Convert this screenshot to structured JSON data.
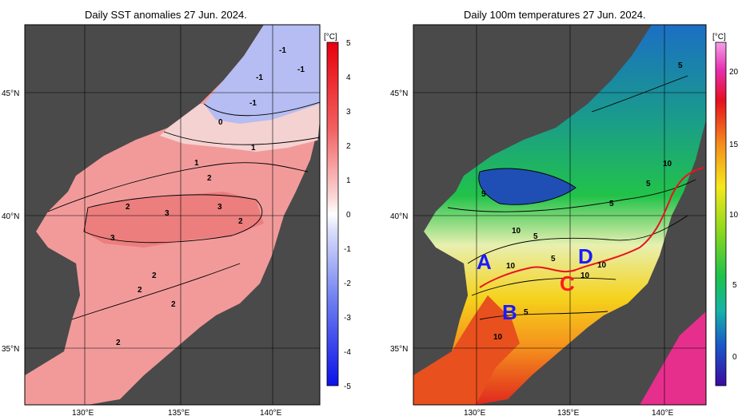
{
  "left_panel": {
    "title": "Daily SST anomalies 27 Jun. 2024.",
    "colorbar_unit": "[°C]",
    "colorbar_ticks": [
      "5",
      "4",
      "3",
      "2",
      "1",
      "0",
      "-1",
      "-2",
      "-3",
      "-4",
      "-5"
    ],
    "contour_labels": [
      "-1",
      "-1",
      "-1",
      "-1",
      "0",
      "1",
      "1",
      "2",
      "2",
      "3",
      "3",
      "2",
      "3",
      "2",
      "2",
      "2",
      "2"
    ],
    "lat_labels": [
      "45°N",
      "40°N",
      "35°N"
    ],
    "lon_labels": [
      "130°E",
      "135°E",
      "140°E"
    ]
  },
  "right_panel": {
    "title": "Daily 100m temperatures 27 Jun. 2024.",
    "colorbar_unit": "[°C]",
    "colorbar_ticks": [
      "20",
      "15",
      "10",
      "5",
      "0"
    ],
    "contour_labels": [
      "5",
      "5",
      "5",
      "5",
      "10",
      "5",
      "10",
      "5",
      "10",
      "10",
      "5",
      "10",
      "10"
    ],
    "region_letters": [
      "A",
      "B",
      "C",
      "D"
    ],
    "lat_labels": [
      "45°N",
      "40°N",
      "35°N"
    ],
    "lon_labels": [
      "130°E",
      "135°E",
      "140°E"
    ]
  },
  "colors": {
    "land": "#4a4a4a",
    "land_light": "#a9a9a9",
    "anomaly_pos": "#f08a8a",
    "anomaly_neg": "#9aa6f0",
    "front_line": "#e8141b",
    "letters_blue": "#1a1aff",
    "letter_red": "#ff1a1a"
  }
}
